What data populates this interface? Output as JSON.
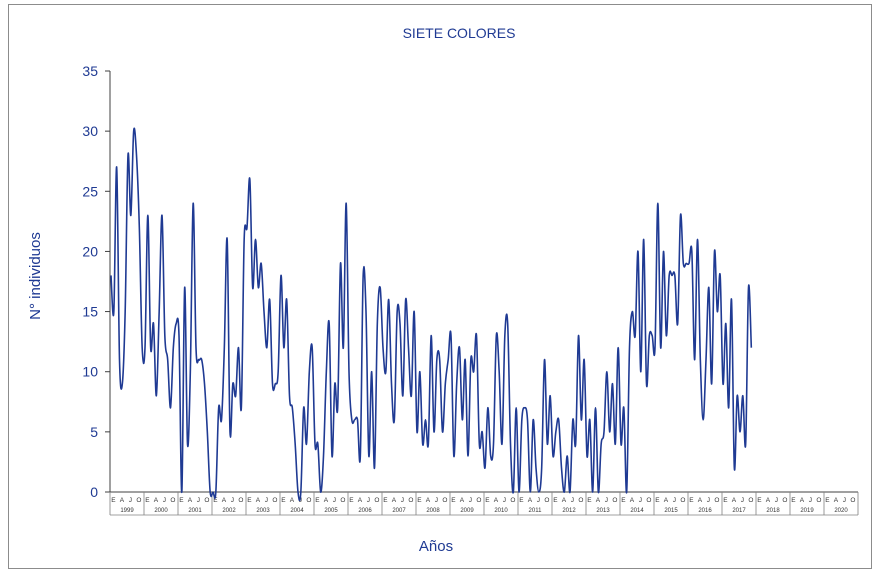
{
  "chart_data": {
    "type": "line",
    "title": "SIETE COLORES",
    "xlabel": "Años",
    "ylabel": "N° individuos",
    "ylim": [
      0,
      35
    ],
    "yticks": [
      0,
      5,
      10,
      15,
      20,
      25,
      30,
      35
    ],
    "month_tick_labels": [
      "E",
      "A",
      "J",
      "O"
    ],
    "years": [
      "1999",
      "2000",
      "2001",
      "2002",
      "2003",
      "2004",
      "2005",
      "2006",
      "2007",
      "2008",
      "2009",
      "2010",
      "2011",
      "2012",
      "2013",
      "2014",
      "2015",
      "2016",
      "2017",
      "2018",
      "2019",
      "2020"
    ],
    "grid": false,
    "legend": "none",
    "line_color": "#1f3a93",
    "series": [
      {
        "values": [
          18,
          15,
          27,
          11,
          9,
          15,
          28,
          23,
          30,
          28,
          22,
          12,
          12,
          23,
          12,
          14,
          8,
          15,
          23,
          13,
          11,
          7,
          12,
          14,
          13,
          0,
          17,
          4,
          10,
          24,
          12,
          11,
          11,
          9,
          5,
          0,
          0,
          0,
          7,
          6,
          12,
          21,
          5,
          9,
          8,
          12,
          7,
          21,
          22,
          26,
          17,
          21,
          17,
          19,
          15,
          12,
          16,
          9,
          9,
          10,
          18,
          12,
          16,
          8,
          7,
          4,
          0,
          0,
          7,
          4,
          10,
          12,
          4,
          4,
          0,
          3,
          10,
          14,
          3,
          9,
          7,
          19,
          12,
          24,
          10,
          6,
          6,
          6,
          3,
          18,
          15,
          3,
          10,
          2,
          14,
          17,
          12,
          10,
          16,
          9,
          6,
          15,
          14,
          8,
          16,
          12,
          8,
          15,
          5,
          10,
          4,
          6,
          4,
          13,
          5,
          11,
          11,
          5,
          9,
          11,
          13,
          3,
          9,
          12,
          6,
          11,
          3,
          11,
          10,
          13,
          4,
          5,
          2,
          7,
          3,
          4,
          13,
          10,
          4,
          13,
          14,
          4,
          0,
          7,
          0,
          6,
          7,
          6,
          0,
          6,
          2,
          0,
          2,
          11,
          4,
          8,
          3,
          5,
          6,
          2,
          0,
          3,
          0,
          6,
          4,
          13,
          6,
          11,
          3,
          6,
          0,
          7,
          0,
          4,
          5,
          10,
          5,
          9,
          4,
          12,
          4,
          7,
          0,
          12,
          15,
          13,
          20,
          10,
          21,
          9,
          13,
          13,
          12,
          24,
          12,
          20,
          13,
          18,
          18,
          18,
          14,
          23,
          19,
          19,
          19,
          20,
          11,
          21,
          11,
          6,
          11,
          17,
          9,
          20,
          15,
          18,
          9,
          14,
          7,
          16,
          2,
          8,
          5,
          8,
          4,
          17,
          12
        ]
      }
    ]
  }
}
